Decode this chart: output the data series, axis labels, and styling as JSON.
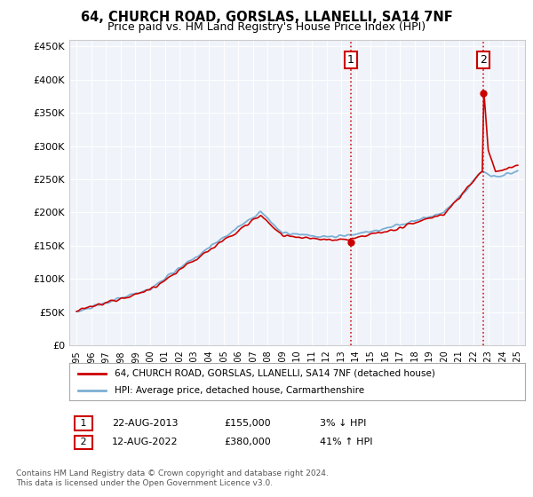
{
  "title": "64, CHURCH ROAD, GORSLAS, LLANELLI, SA14 7NF",
  "subtitle": "Price paid vs. HM Land Registry's House Price Index (HPI)",
  "legend_label1": "64, CHURCH ROAD, GORSLAS, LLANELLI, SA14 7NF (detached house)",
  "legend_label2": "HPI: Average price, detached house, Carmarthenshire",
  "annotation1_label": "1",
  "annotation1_date": "22-AUG-2013",
  "annotation1_price": "£155,000",
  "annotation1_hpi": "3% ↓ HPI",
  "annotation1_year": 2013.64,
  "annotation1_value": 155000,
  "annotation2_label": "2",
  "annotation2_date": "12-AUG-2022",
  "annotation2_price": "£380,000",
  "annotation2_hpi": "41% ↑ HPI",
  "annotation2_year": 2022.64,
  "annotation2_value": 380000,
  "footer": "Contains HM Land Registry data © Crown copyright and database right 2024.\nThis data is licensed under the Open Government Licence v3.0.",
  "hpi_color": "#7bafd4",
  "price_color": "#cc0000",
  "plot_bg_color": "#f0f4fa",
  "fig_bg_color": "#ffffff",
  "ylim": [
    0,
    460000
  ],
  "yticks": [
    0,
    50000,
    100000,
    150000,
    200000,
    250000,
    300000,
    350000,
    400000,
    450000
  ],
  "xlim": [
    1994.5,
    2025.5
  ],
  "xticks": [
    1995,
    1996,
    1997,
    1998,
    1999,
    2000,
    2001,
    2002,
    2003,
    2004,
    2005,
    2006,
    2007,
    2008,
    2009,
    2010,
    2011,
    2012,
    2013,
    2014,
    2015,
    2016,
    2017,
    2018,
    2019,
    2020,
    2021,
    2022,
    2023,
    2024,
    2025
  ]
}
